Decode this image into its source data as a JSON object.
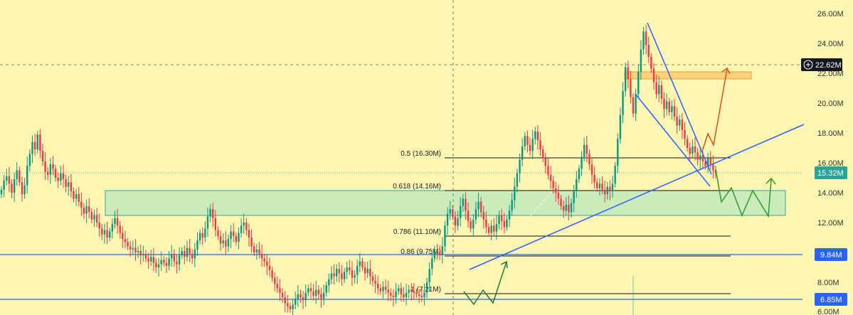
{
  "chart_data": {
    "type": "candlestick",
    "y_axis": {
      "ticks": [
        "26.00M",
        "24.00M",
        "22.00M",
        "20.00M",
        "18.00M",
        "16.00M",
        "14.00M",
        "12.00M",
        "8.00M",
        "6.00M"
      ],
      "tick_values": [
        26,
        24,
        22,
        20,
        18,
        16,
        14,
        12,
        8,
        6
      ],
      "range": [
        6,
        26.5
      ]
    },
    "price_badges": [
      {
        "label": "22.62M",
        "value": 22.62,
        "kind": "crosshair",
        "bg": "#131722"
      },
      {
        "label": "15.32M",
        "value": 15.32,
        "kind": "last",
        "bg": "#26a69a"
      },
      {
        "label": "9.84M",
        "value": 9.84,
        "kind": "level",
        "bg": "#2962ff"
      },
      {
        "label": "6.85M",
        "value": 6.85,
        "kind": "level",
        "bg": "#2962ff"
      }
    ],
    "fib_levels": [
      {
        "label": "0.5 (16.30M)",
        "value": 16.3
      },
      {
        "label": "0.618 (14.16M)",
        "value": 14.16
      },
      {
        "label": "0.786 (11.10M)",
        "value": 11.1
      },
      {
        "label": "0.86 (9.75M)",
        "value": 9.75
      },
      {
        "label": "1 (7.21M)",
        "value": 7.21
      }
    ],
    "support_zone": {
      "low": 12.5,
      "high": 14.2
    },
    "resistance_zone": {
      "low": 21.6,
      "high": 22.0
    },
    "horizontal_levels": [
      9.84,
      6.85
    ],
    "series_closes": [
      14.2,
      14.8,
      15.1,
      14.6,
      14.0,
      14.9,
      15.5,
      14.7,
      13.9,
      14.5,
      15.8,
      16.6,
      17.4,
      16.9,
      17.9,
      16.8,
      16.1,
      15.4,
      15.2,
      15.9,
      15.6,
      15.0,
      14.8,
      15.3,
      14.9,
      14.4,
      14.7,
      14.1,
      13.6,
      13.9,
      13.4,
      13.0,
      12.6,
      13.1,
      12.7,
      12.2,
      12.5,
      12.0,
      11.6,
      11.2,
      11.5,
      11.0,
      11.4,
      11.9,
      12.3,
      11.8,
      11.3,
      10.9,
      10.7,
      10.4,
      10.2,
      10.3,
      10.0,
      10.1,
      9.8,
      9.9,
      9.6,
      9.4,
      9.7,
      9.3,
      9.0,
      9.2,
      9.5,
      9.3,
      9.1,
      9.6,
      9.9,
      9.4,
      9.2,
      9.8,
      10.1,
      9.7,
      10.3,
      9.9,
      9.6,
      10.2,
      10.8,
      11.3,
      11.0,
      11.6,
      12.4,
      12.9,
      12.3,
      11.5,
      11.1,
      10.6,
      10.8,
      10.4,
      10.9,
      11.4,
      11.1,
      10.7,
      11.3,
      11.8,
      12.0,
      11.5,
      11.0,
      10.4,
      10.0,
      10.2,
      9.9,
      9.6,
      9.4,
      9.1,
      8.8,
      8.3,
      7.9,
      7.6,
      7.3,
      7.0,
      6.6,
      6.4,
      6.2,
      6.5,
      6.9,
      7.2,
      7.0,
      6.8,
      7.3,
      7.6,
      7.4,
      7.1,
      7.5,
      7.2,
      6.9,
      7.3,
      7.8,
      8.2,
      8.6,
      8.4,
      8.9,
      8.6,
      8.2,
      8.7,
      9.0,
      8.8,
      8.3,
      8.5,
      9.1,
      9.4,
      9.0,
      8.6,
      8.9,
      8.4,
      8.1,
      7.9,
      7.6,
      7.4,
      7.7,
      7.5,
      7.3,
      7.1,
      7.0,
      7.4,
      7.6,
      7.2,
      7.0,
      7.3,
      7.5,
      7.4,
      7.3,
      7.2,
      7.1,
      7.0,
      7.3,
      8.0,
      8.9,
      9.6,
      10.2,
      10.0,
      9.8,
      10.4,
      11.8,
      12.6,
      12.9,
      12.4,
      11.8,
      12.3,
      13.1,
      13.6,
      12.8,
      12.1,
      11.6,
      12.2,
      12.9,
      13.4,
      12.7,
      12.2,
      11.7,
      11.3,
      11.8,
      11.4,
      11.9,
      12.5,
      12.1,
      11.7,
      12.2,
      12.8,
      13.5,
      14.4,
      15.3,
      16.2,
      17.1,
      17.8,
      17.2,
      16.8,
      17.6,
      18.1,
      17.5,
      16.9,
      16.3,
      15.8,
      15.2,
      14.8,
      14.3,
      14.0,
      13.6,
      13.1,
      12.8,
      13.2,
      12.7,
      13.3,
      14.1,
      14.9,
      15.6,
      16.4,
      17.2,
      16.6,
      15.9,
      15.2,
      14.7,
      14.3,
      14.6,
      14.2,
      13.9,
      14.4,
      14.1,
      14.6,
      15.8,
      17.6,
      19.2,
      20.8,
      22.4,
      21.6,
      20.4,
      19.3,
      20.6,
      22.1,
      23.6,
      24.8,
      23.9,
      23.1,
      22.3,
      21.4,
      20.6,
      21.2,
      20.3,
      19.6,
      20.1,
      19.4,
      19.8,
      19.1,
      18.5,
      18.9,
      18.2,
      17.6,
      17.0,
      16.6,
      17.1,
      16.7,
      16.2,
      16.5,
      16.1,
      15.8,
      16.3,
      15.9,
      15.5,
      15.32
    ]
  }
}
